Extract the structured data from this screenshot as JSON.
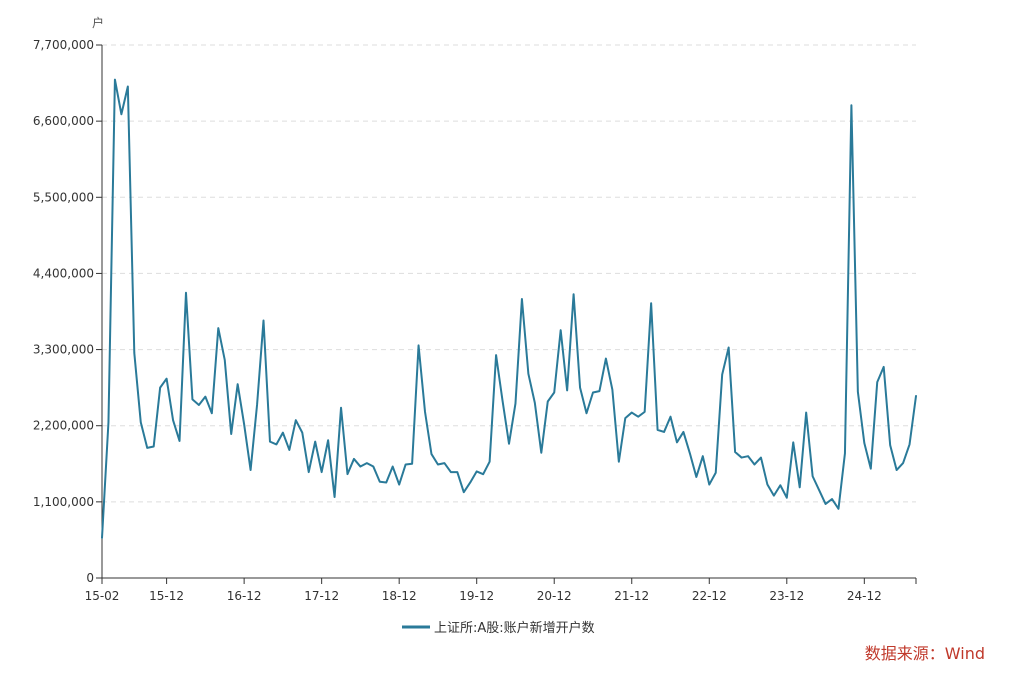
{
  "chart_data": {
    "type": "line",
    "title": "",
    "ylabel": "户",
    "xlabel": "",
    "ylim": [
      0,
      7700000
    ],
    "y_ticks": [
      0,
      1100000,
      2200000,
      3300000,
      4400000,
      5500000,
      6600000,
      7700000
    ],
    "y_tick_labels": [
      "0",
      "1,100,000",
      "2,200,000",
      "3,300,000",
      "4,400,000",
      "5,500,000",
      "6,600,000",
      "7,700,000"
    ],
    "x_tick_labels": [
      "15-02",
      "15-12",
      "16-12",
      "17-12",
      "18-12",
      "19-12",
      "20-12",
      "21-12",
      "22-12",
      "23-12",
      "24-12"
    ],
    "x_tick_indices": [
      0,
      10,
      22,
      34,
      46,
      58,
      70,
      82,
      94,
      106,
      118
    ],
    "grid": true,
    "legend_position": "bottom",
    "series": [
      {
        "name": "上证所:A股:账户新增开户数",
        "color": "#2a7a99",
        "values": [
          580000,
          2250000,
          7200000,
          6700000,
          7100000,
          3250000,
          2250000,
          1880000,
          1900000,
          2750000,
          2880000,
          2280000,
          1980000,
          4120000,
          2580000,
          2500000,
          2620000,
          2380000,
          3610000,
          3150000,
          2080000,
          2800000,
          2220000,
          1560000,
          2500000,
          3720000,
          1970000,
          1930000,
          2100000,
          1850000,
          2280000,
          2100000,
          1530000,
          1970000,
          1530000,
          1990000,
          1170000,
          2460000,
          1500000,
          1720000,
          1610000,
          1660000,
          1610000,
          1390000,
          1380000,
          1610000,
          1350000,
          1640000,
          1650000,
          3360000,
          2400000,
          1790000,
          1640000,
          1660000,
          1530000,
          1530000,
          1240000,
          1380000,
          1540000,
          1500000,
          1680000,
          3220000,
          2560000,
          1940000,
          2520000,
          4030000,
          2950000,
          2530000,
          1810000,
          2550000,
          2680000,
          3580000,
          2710000,
          4100000,
          2750000,
          2380000,
          2680000,
          2700000,
          3170000,
          2720000,
          1680000,
          2310000,
          2390000,
          2330000,
          2400000,
          3970000,
          2140000,
          2110000,
          2330000,
          1960000,
          2110000,
          1800000,
          1460000,
          1760000,
          1350000,
          1520000,
          2940000,
          3330000,
          1820000,
          1740000,
          1760000,
          1640000,
          1740000,
          1350000,
          1190000,
          1340000,
          1160000,
          1960000,
          1310000,
          2390000,
          1470000,
          1270000,
          1070000,
          1140000,
          1000000,
          1800000,
          6830000,
          2690000,
          1950000,
          1580000,
          2830000,
          3050000,
          1920000,
          1560000,
          1660000,
          1930000,
          2630000
        ]
      }
    ]
  },
  "source_label": "数据来源：Wind"
}
